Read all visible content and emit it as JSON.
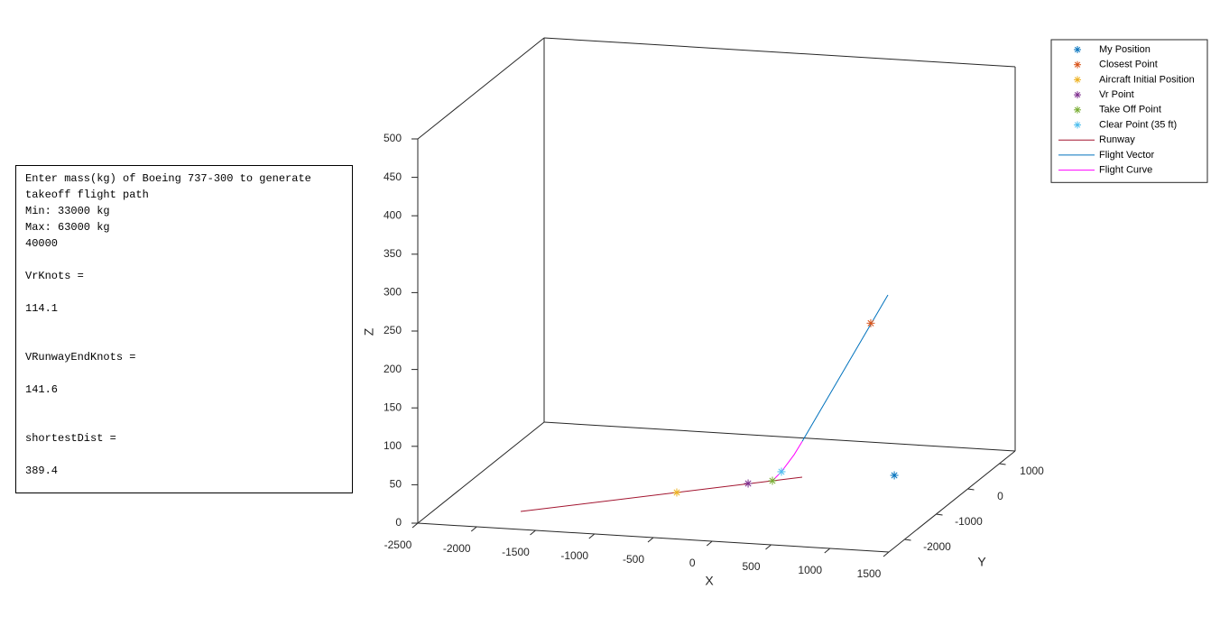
{
  "console": {
    "lines": [
      "Enter mass(kg) of Boeing 737-300 to generate",
      "takeoff flight path",
      "Min: 33000 kg",
      "Max: 63000 kg",
      "40000",
      "VrKnots =",
      "114.1",
      "VRunwayEndKnots =",
      "141.6",
      "shortestDist =",
      "389.4"
    ]
  },
  "chart_data": {
    "type": "line3d",
    "xlabel": "X",
    "ylabel": "Y",
    "zlabel": "Z",
    "xlim": [
      -2500,
      1500
    ],
    "ylim": [
      -2500,
      1500
    ],
    "zlim": [
      0,
      500
    ],
    "xticks": [
      -2500,
      -2000,
      -1500,
      -1000,
      -500,
      0,
      500,
      1000,
      1500
    ],
    "yticks": [
      -2000,
      -1000,
      0,
      1000
    ],
    "zticks": [
      0,
      50,
      100,
      150,
      200,
      250,
      300,
      350,
      400,
      450,
      500
    ],
    "grid": false,
    "legend": "upper right",
    "series": [
      {
        "name": "My Position",
        "color": "#0072BD",
        "marker": "*",
        "x": [
          787
        ],
        "y": [
          332
        ],
        "z": [
          0
        ]
      },
      {
        "name": "Closest Point",
        "color": "#D95319",
        "marker": "*",
        "x": [
          533
        ],
        "y": [
          533
        ],
        "z": [
          189
        ]
      },
      {
        "name": "Aircraft Initial Position",
        "color": "#EDB120",
        "marker": "*",
        "x": [
          -760
        ],
        "y": [
          -788
        ],
        "z": [
          0
        ]
      },
      {
        "name": "Vr Point",
        "color": "#7E2F8E",
        "marker": "*",
        "x": [
          -286
        ],
        "y": [
          -296
        ],
        "z": [
          0
        ]
      },
      {
        "name": "Take Off Point",
        "color": "#77AC30",
        "marker": "*",
        "x": [
          -121
        ],
        "y": [
          -142
        ],
        "z": [
          0
        ]
      },
      {
        "name": "Clear Point (35 ft)",
        "color": "#4DBEEE",
        "marker": "*",
        "x": [
          -58
        ],
        "y": [
          -91
        ],
        "z": [
          10.7
        ]
      },
      {
        "name": "Runway",
        "color": "#A2142F",
        "x": [
          -1804,
          78
        ],
        "y": [
          -1837,
          58
        ],
        "z": [
          0,
          0
        ]
      },
      {
        "name": "Flight Vector",
        "color": "#0072BD",
        "x": [
          74,
          648
        ],
        "y": [
          74,
          648
        ],
        "z": [
          46,
          223
        ]
      },
      {
        "name": "Flight Curve",
        "color": "#FF00FF",
        "x": [
          -121,
          -58,
          20,
          74
        ],
        "y": [
          -142,
          -91,
          20,
          74
        ],
        "z": [
          0,
          10.7,
          30,
          46
        ]
      }
    ]
  }
}
